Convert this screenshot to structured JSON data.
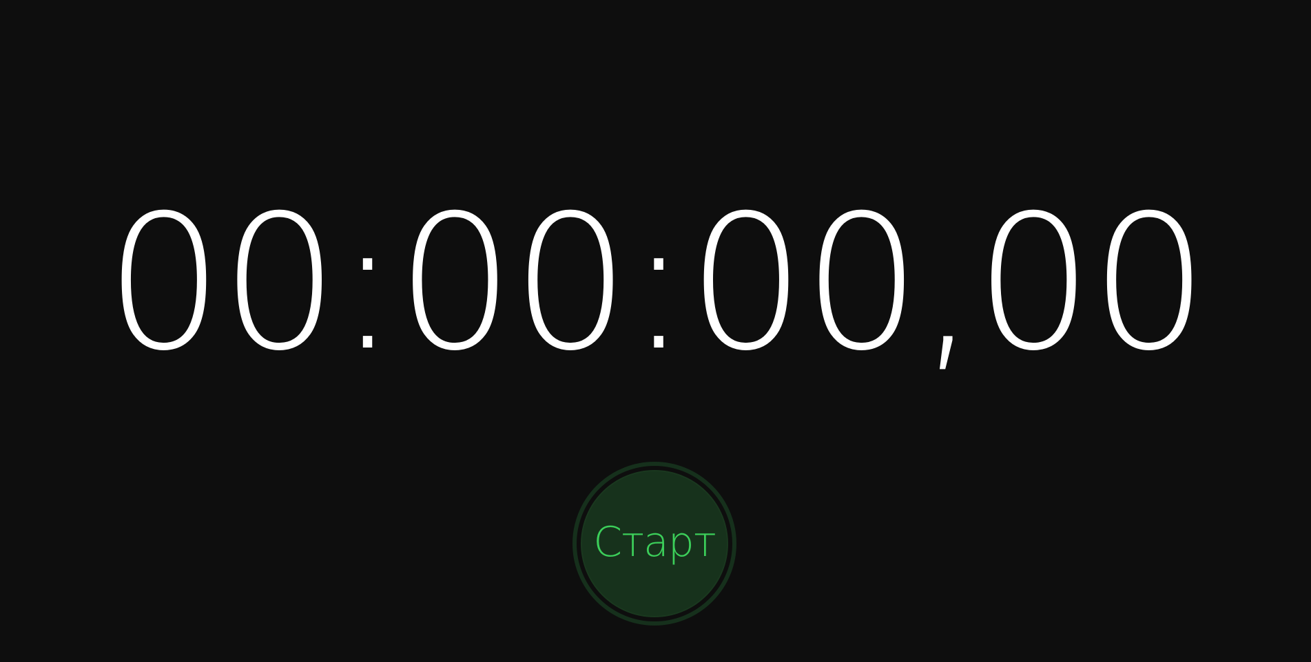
{
  "stopwatch": {
    "time_display": "00:00:00,00",
    "start_label": "Старт"
  },
  "colors": {
    "background": "#0e0e0e",
    "time_text": "#ffffff",
    "start_button_fill": "#17321c",
    "start_button_ring": "#16301c",
    "start_label": "#3ccf5a"
  }
}
